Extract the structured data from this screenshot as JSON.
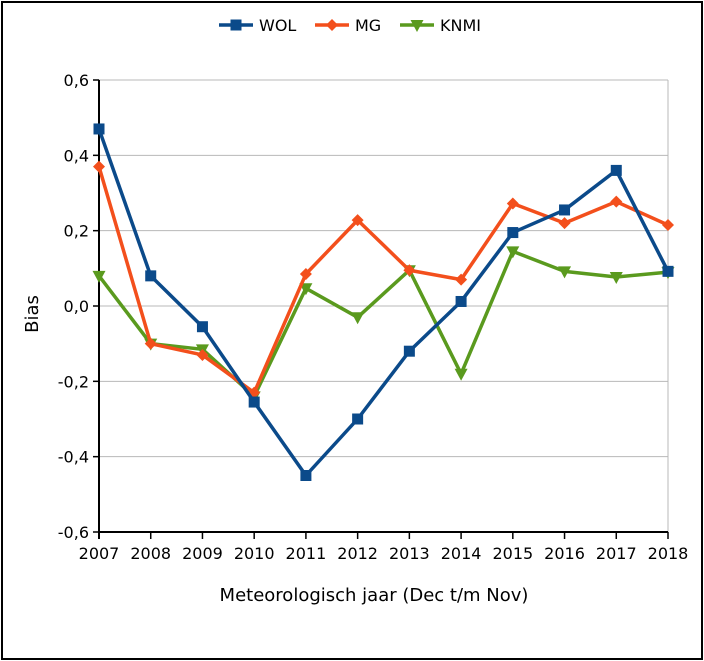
{
  "chart_data": {
    "type": "line",
    "categories": [
      "2007",
      "2008",
      "2009",
      "2010",
      "2011",
      "2012",
      "2013",
      "2014",
      "2015",
      "2016",
      "2017",
      "2018"
    ],
    "xlabel": "Meteorologisch jaar (Dec t/m Nov)",
    "ylabel": "Bias",
    "ylim": [
      -0.6,
      0.6
    ],
    "yticks": [
      {
        "value": -0.6,
        "label": "-0,6"
      },
      {
        "value": -0.4,
        "label": "-0,4"
      },
      {
        "value": -0.2,
        "label": "-0,2"
      },
      {
        "value": 0.0,
        "label": "0,0"
      },
      {
        "value": 0.2,
        "label": "0,2"
      },
      {
        "value": 0.4,
        "label": "0,4"
      },
      {
        "value": 0.6,
        "label": "0,6"
      }
    ],
    "grid": true,
    "legend_position": "top-center",
    "series": [
      {
        "name": "WOL",
        "color": "#0b4a8a",
        "marker": "square",
        "values": [
          0.47,
          0.08,
          -0.055,
          -0.255,
          -0.45,
          -0.3,
          -0.12,
          0.012,
          0.195,
          0.255,
          0.36,
          0.092
        ]
      },
      {
        "name": "MG",
        "color": "#f34f1c",
        "marker": "diamond",
        "values": [
          0.37,
          -0.1,
          -0.13,
          -0.23,
          0.085,
          0.228,
          0.095,
          0.07,
          0.272,
          0.22,
          0.277,
          0.215
        ]
      },
      {
        "name": "KNMI",
        "color": "#5a9a1e",
        "marker": "triangle-down",
        "values": [
          0.08,
          -0.1,
          -0.115,
          -0.24,
          0.047,
          -0.03,
          0.095,
          -0.18,
          0.145,
          0.092,
          0.077,
          0.09
        ]
      }
    ]
  }
}
